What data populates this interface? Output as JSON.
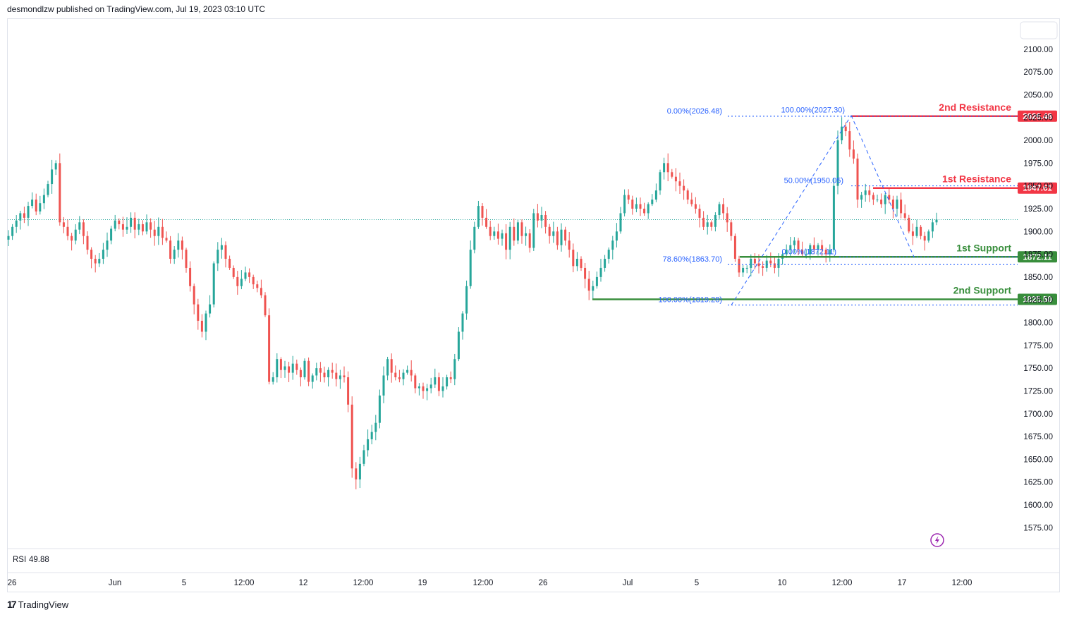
{
  "header": {
    "published": "desmondlzw published on TradingView.com, Jul 19, 2023 03:10 UTC"
  },
  "brand": {
    "name": "TradingView",
    "icon": "tradingview-logo-icon"
  },
  "indicator": {
    "name": "RSI",
    "value": "49.88",
    "color": "#7e57c2"
  },
  "colors": {
    "up": "#26a69a",
    "down": "#ef5350",
    "resistance": "#f23645",
    "support": "#388e3c",
    "fib": "#2962ff",
    "current": "#26a69a"
  },
  "chart_data": {
    "type": "candlestick",
    "y_ticks": [
      "2100.00",
      "2075.00",
      "2050.00",
      "2025.00",
      "2000.00",
      "1975.00",
      "1950.00",
      "1925.00",
      "1900.00",
      "1875.00",
      "1850.00",
      "1825.00",
      "1800.00",
      "1775.00",
      "1750.00",
      "1725.00",
      "1700.00",
      "1675.00",
      "1650.00",
      "1625.00",
      "1600.00",
      "1575.00"
    ],
    "x_ticks": [
      "26",
      "Jun",
      "5",
      "12:00",
      "12",
      "12:00",
      "19",
      "12:00",
      "26",
      "Jul",
      "5",
      "10",
      "12:00",
      "17",
      "12:00"
    ],
    "ylim": [
      1560,
      2115
    ],
    "current_price": 1913,
    "levels": [
      {
        "name": "2nd Resistance",
        "value": "2026.48",
        "price": 2026.48,
        "kind": "resistance"
      },
      {
        "name": "1st Resistance",
        "value": "1947.61",
        "price": 1947.61,
        "kind": "resistance"
      },
      {
        "name": "1st Support",
        "value": "1872.11",
        "price": 1872.11,
        "kind": "support"
      },
      {
        "name": "2nd Support",
        "value": "1825.50",
        "price": 1825.5,
        "kind": "support"
      }
    ],
    "fib_labels": [
      {
        "text": "0.00%(2026.48)",
        "price": 2026.48
      },
      {
        "text": "100.00%(2027.30)",
        "price": 2027.3
      },
      {
        "text": "50.00%(1950.05)",
        "price": 1950.05
      },
      {
        "text": "78.60%(1863.70)",
        "price": 1863.7
      },
      {
        "text": "0.00%(1872.11)",
        "price": 1872.11
      },
      {
        "text": "100.00%(1819.28)",
        "price": 1819.28
      }
    ],
    "close_series": [
      1895,
      1905,
      1912,
      1920,
      1915,
      1928,
      1935,
      1922,
      1931,
      1940,
      1952,
      1968,
      1975,
      1910,
      1905,
      1895,
      1890,
      1902,
      1910,
      1895,
      1880,
      1870,
      1865,
      1870,
      1880,
      1890,
      1903,
      1912,
      1908,
      1902,
      1905,
      1915,
      1902,
      1908,
      1900,
      1910,
      1902,
      1895,
      1905,
      1893,
      1890,
      1870,
      1880,
      1890,
      1880,
      1860,
      1840,
      1820,
      1802,
      1790,
      1810,
      1820,
      1865,
      1880,
      1885,
      1870,
      1860,
      1850,
      1840,
      1848,
      1855,
      1850,
      1842,
      1838,
      1830,
      1808,
      1735,
      1740,
      1760,
      1748,
      1752,
      1745,
      1755,
      1748,
      1740,
      1758,
      1735,
      1742,
      1750,
      1745,
      1740,
      1748,
      1745,
      1738,
      1742,
      1740,
      1710,
      1640,
      1628,
      1645,
      1660,
      1672,
      1680,
      1690,
      1720,
      1742,
      1760,
      1745,
      1740,
      1738,
      1745,
      1748,
      1742,
      1728,
      1730,
      1725,
      1728,
      1732,
      1740,
      1725,
      1730,
      1740,
      1738,
      1760,
      1790,
      1810,
      1840,
      1880,
      1905,
      1928,
      1915,
      1905,
      1895,
      1900,
      1892,
      1898,
      1880,
      1905,
      1890,
      1910,
      1895,
      1898,
      1882,
      1920,
      1912,
      1918,
      1905,
      1895,
      1900,
      1885,
      1902,
      1890,
      1880,
      1862,
      1870,
      1860,
      1848,
      1835,
      1840,
      1850,
      1860,
      1870,
      1880,
      1890,
      1900,
      1920,
      1940,
      1935,
      1925,
      1930,
      1925,
      1920,
      1930,
      1935,
      1945,
      1965,
      1975,
      1965,
      1960,
      1955,
      1950,
      1945,
      1935,
      1930,
      1925,
      1915,
      1905,
      1910,
      1905,
      1918,
      1930,
      1920,
      1910,
      1895,
      1870,
      1855,
      1860,
      1860,
      1870,
      1865,
      1862,
      1860,
      1868,
      1865,
      1860,
      1870,
      1875,
      1880,
      1885,
      1890,
      1880,
      1875,
      1875,
      1885,
      1880,
      1885,
      1880,
      1875,
      1880,
      1950,
      2000,
      2015,
      2010,
      1990,
      1980,
      1935,
      1940,
      1945,
      1940,
      1935,
      1935,
      1930,
      1940,
      1935,
      1925,
      1935,
      1920,
      1915,
      1900,
      1895,
      1905,
      1895,
      1890,
      1900,
      1910,
      1913
    ]
  }
}
